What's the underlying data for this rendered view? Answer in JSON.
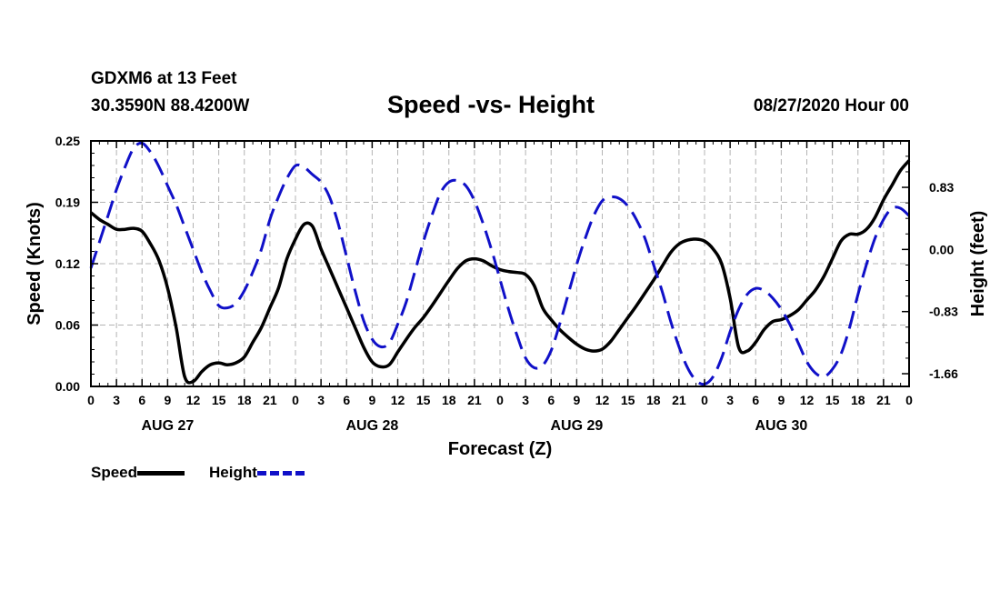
{
  "header": {
    "station": "GDXM6 at 13 Feet",
    "coords": "30.3590N 88.4200W",
    "title": "Speed -vs- Height",
    "run_time": "08/27/2020 Hour 00"
  },
  "legend": {
    "speed_label": "Speed",
    "height_label": "Height"
  },
  "colors": {
    "speed": "#000000",
    "height": "#1010c8",
    "grid": "#b4b4b4"
  },
  "chart_data": {
    "type": "line",
    "title": "Speed -vs- Height",
    "xlabel": "Forecast (Z)",
    "ylabel_left": "Speed (Knots)",
    "ylabel_right": "Height (feet)",
    "x_range_hours": [
      0,
      96
    ],
    "x_tick_every_hours": 3,
    "x_tick_labels": [
      "0",
      "3",
      "6",
      "9",
      "12",
      "15",
      "18",
      "21",
      "0",
      "3",
      "6",
      "9",
      "12",
      "15",
      "18",
      "21",
      "0",
      "3",
      "6",
      "9",
      "12",
      "15",
      "18",
      "21",
      "0",
      "3",
      "6",
      "9",
      "12",
      "15",
      "18",
      "21",
      "0"
    ],
    "day_labels": [
      {
        "label": "AUG 27",
        "hour": 9
      },
      {
        "label": "AUG 28",
        "hour": 33
      },
      {
        "label": "AUG 29",
        "hour": 57
      },
      {
        "label": "AUG 30",
        "hour": 81
      }
    ],
    "y_left": {
      "range": [
        0,
        0.25
      ],
      "ticks": [
        "0.00",
        "0.06",
        "0.12",
        "0.19",
        "0.25"
      ],
      "tick_values": [
        0,
        0.0625,
        0.125,
        0.1875,
        0.25
      ]
    },
    "y_right": {
      "range": [
        -1.83,
        1.45
      ],
      "ticks": [
        "0.83",
        "0.00",
        "-0.83",
        "-1.66"
      ],
      "tick_values": [
        0.83,
        0.0,
        -0.83,
        -1.66
      ]
    },
    "series": [
      {
        "name": "Speed",
        "axis": "left",
        "style": "solid",
        "x": [
          0,
          1,
          2,
          3,
          4,
          5,
          6,
          7,
          8,
          9,
          10,
          11,
          12,
          13,
          14,
          15,
          16,
          17,
          18,
          19,
          20,
          21,
          22,
          23,
          24,
          25,
          26,
          27,
          28,
          29,
          30,
          31,
          32,
          33,
          34,
          35,
          36,
          37,
          38,
          39,
          40,
          41,
          42,
          43,
          44,
          45,
          46,
          47,
          48,
          49,
          50,
          51,
          52,
          53,
          54,
          55,
          56,
          57,
          58,
          59,
          60,
          61,
          62,
          63,
          64,
          65,
          66,
          67,
          68,
          69,
          70,
          71,
          72,
          73,
          74,
          75,
          76,
          77,
          78,
          79,
          80,
          81,
          82,
          83,
          84,
          85,
          86,
          87,
          88,
          89,
          90,
          91,
          92,
          93,
          94,
          95,
          96
        ],
        "values": [
          0.177,
          0.17,
          0.165,
          0.16,
          0.16,
          0.161,
          0.158,
          0.145,
          0.128,
          0.1,
          0.06,
          0.01,
          0.005,
          0.015,
          0.022,
          0.024,
          0.022,
          0.024,
          0.03,
          0.045,
          0.06,
          0.08,
          0.1,
          0.13,
          0.15,
          0.165,
          0.163,
          0.14,
          0.12,
          0.1,
          0.08,
          0.06,
          0.04,
          0.025,
          0.02,
          0.022,
          0.035,
          0.048,
          0.06,
          0.07,
          0.082,
          0.095,
          0.108,
          0.12,
          0.128,
          0.13,
          0.128,
          0.123,
          0.119,
          0.117,
          0.116,
          0.114,
          0.103,
          0.08,
          0.068,
          0.058,
          0.05,
          0.043,
          0.038,
          0.036,
          0.038,
          0.046,
          0.058,
          0.07,
          0.082,
          0.095,
          0.108,
          0.122,
          0.136,
          0.145,
          0.149,
          0.15,
          0.148,
          0.14,
          0.125,
          0.09,
          0.04,
          0.036,
          0.045,
          0.058,
          0.066,
          0.068,
          0.072,
          0.078,
          0.088,
          0.098,
          0.112,
          0.13,
          0.148,
          0.155,
          0.155,
          0.16,
          0.172,
          0.19,
          0.205,
          0.22,
          0.23
        ]
      },
      {
        "name": "Height",
        "axis": "right",
        "style": "dashed",
        "x": [
          0,
          1,
          2,
          3,
          4,
          5,
          6,
          7,
          8,
          9,
          10,
          11,
          12,
          13,
          14,
          15,
          16,
          17,
          18,
          19,
          20,
          21,
          22,
          23,
          24,
          25,
          26,
          27,
          28,
          29,
          30,
          31,
          32,
          33,
          34,
          35,
          36,
          37,
          38,
          39,
          40,
          41,
          42,
          43,
          44,
          45,
          46,
          47,
          48,
          49,
          50,
          51,
          52,
          53,
          54,
          55,
          56,
          57,
          58,
          59,
          60,
          61,
          62,
          63,
          64,
          65,
          66,
          67,
          68,
          69,
          70,
          71,
          72,
          73,
          74,
          75,
          76,
          77,
          78,
          79,
          80,
          81,
          82,
          83,
          84,
          85,
          86,
          87,
          88,
          89,
          90,
          91,
          92,
          93,
          94,
          95,
          96
        ],
        "values": [
          -0.25,
          0.1,
          0.45,
          0.8,
          1.1,
          1.35,
          1.42,
          1.3,
          1.1,
          0.85,
          0.6,
          0.3,
          0.0,
          -0.3,
          -0.55,
          -0.75,
          -0.78,
          -0.72,
          -0.55,
          -0.3,
          0.0,
          0.4,
          0.7,
          0.95,
          1.12,
          1.1,
          1.0,
          0.9,
          0.7,
          0.35,
          -0.1,
          -0.55,
          -0.95,
          -1.2,
          -1.3,
          -1.25,
          -1.0,
          -0.7,
          -0.3,
          0.1,
          0.45,
          0.75,
          0.9,
          0.92,
          0.85,
          0.65,
          0.35,
          0.0,
          -0.4,
          -0.8,
          -1.15,
          -1.45,
          -1.58,
          -1.55,
          -1.35,
          -1.0,
          -0.6,
          -0.2,
          0.15,
          0.45,
          0.65,
          0.7,
          0.68,
          0.58,
          0.4,
          0.15,
          -0.2,
          -0.55,
          -0.95,
          -1.3,
          -1.58,
          -1.75,
          -1.8,
          -1.7,
          -1.45,
          -1.1,
          -0.8,
          -0.6,
          -0.52,
          -0.55,
          -0.65,
          -0.8,
          -1.0,
          -1.25,
          -1.5,
          -1.65,
          -1.7,
          -1.6,
          -1.4,
          -1.05,
          -0.6,
          -0.2,
          0.15,
          0.4,
          0.55,
          0.55,
          0.45
        ]
      }
    ]
  }
}
